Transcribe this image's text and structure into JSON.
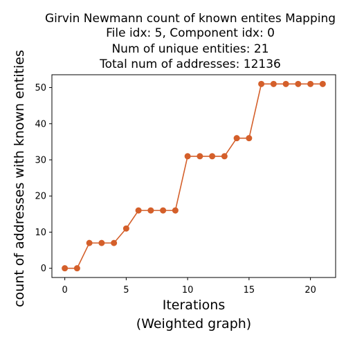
{
  "title_lines": [
    "Girvin Newmann count of known entites Mapping",
    "File idx: 5, Component idx: 0",
    "Num of unique entities: 21",
    "Total num of addresses: 12136"
  ],
  "xlabel_lines": [
    "Iterations",
    "(Weighted graph)"
  ],
  "ylabel": "count of addresses with known entities",
  "chart_data": {
    "type": "line",
    "title": "Girvin Newmann count of known entites Mapping\nFile idx: 5, Component idx: 0\nNum of unique entities: 21\nTotal num of addresses: 12136",
    "xlabel": "Iterations\n(Weighted graph)",
    "ylabel": "count of addresses with known entities",
    "x": [
      0,
      1,
      2,
      3,
      4,
      5,
      6,
      7,
      8,
      9,
      10,
      11,
      12,
      13,
      14,
      15,
      16,
      17,
      18,
      19,
      20,
      21
    ],
    "series": [
      {
        "values": [
          0,
          0,
          7,
          7,
          7,
          11,
          16,
          16,
          16,
          16,
          31,
          31,
          31,
          31,
          36,
          36,
          51,
          51,
          51,
          51,
          51,
          51
        ],
        "color": "#d45f2a",
        "marker": "circle"
      }
    ],
    "xticks": [
      0,
      5,
      10,
      15,
      20
    ],
    "yticks": [
      0,
      10,
      20,
      30,
      40,
      50
    ],
    "xlim": [
      -1.05,
      22.05
    ],
    "ylim": [
      -2.55,
      53.55
    ],
    "grid": false,
    "legend": "none"
  }
}
